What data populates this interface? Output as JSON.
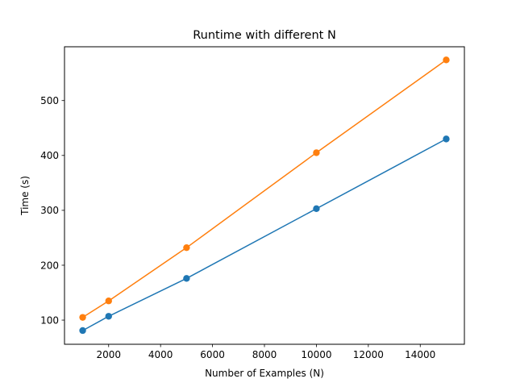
{
  "chart_data": {
    "type": "line",
    "title": "Runtime with different N",
    "xlabel": "Number of Examples (N)",
    "ylabel": "Time (s)",
    "x": [
      1000,
      2000,
      5000,
      10000,
      15000
    ],
    "xlim": [
      300,
      15700
    ],
    "ylim": [
      56,
      598
    ],
    "xticks": [
      2000,
      4000,
      6000,
      8000,
      10000,
      12000,
      14000
    ],
    "xtick_labels": [
      "2000",
      "4000",
      "6000",
      "8000",
      "10000",
      "12000",
      "14000"
    ],
    "yticks": [
      100,
      200,
      300,
      400,
      500
    ],
    "ytick_labels": [
      "100",
      "200",
      "300",
      "400",
      "500"
    ],
    "grid": false,
    "legend": false,
    "series": [
      {
        "values": [
          81,
          107,
          176,
          303,
          430
        ],
        "color": "#1f77b4",
        "marker": "circle"
      },
      {
        "values": [
          105,
          135,
          232,
          405,
          574
        ],
        "color": "#ff7f0e",
        "marker": "circle"
      }
    ]
  }
}
